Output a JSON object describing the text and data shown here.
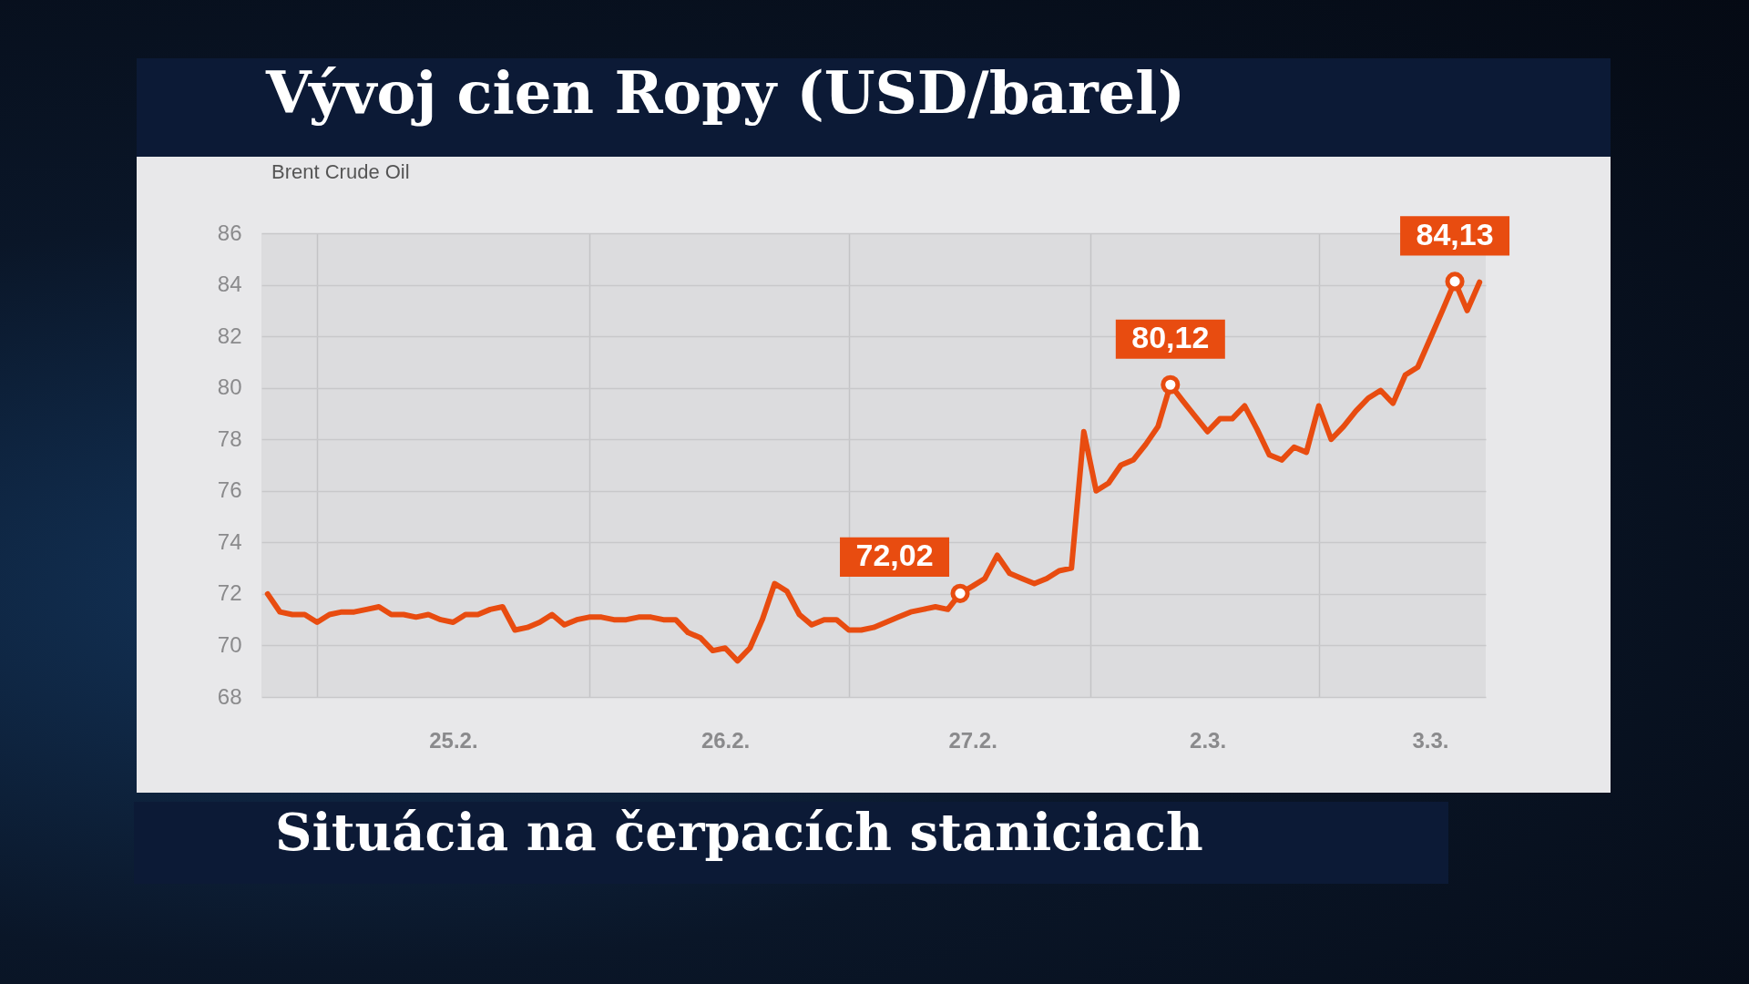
{
  "chart_data": {
    "type": "line",
    "title": "Vývoj cien Ropy (USD/barel)",
    "subtitle": "Brent Crude Oil",
    "categories": [
      null,
      null,
      null,
      null,
      null,
      null,
      null,
      null,
      null,
      null,
      null,
      null,
      null,
      null,
      null,
      "25.2.",
      null,
      null,
      null,
      null,
      null,
      null,
      null,
      null,
      null,
      null,
      null,
      null,
      null,
      null,
      null,
      null,
      null,
      null,
      null,
      null,
      null,
      "26.2.",
      null,
      null,
      null,
      null,
      null,
      null,
      null,
      null,
      null,
      null,
      null,
      null,
      null,
      null,
      null,
      null,
      null,
      null,
      null,
      "27.2.",
      null,
      null,
      null,
      null,
      null,
      null,
      null,
      null,
      null,
      null,
      null,
      null,
      null,
      null,
      null,
      null,
      null,
      null,
      "2.3.",
      null,
      null,
      null,
      null,
      null,
      null,
      null,
      null,
      null,
      null,
      null,
      null,
      null,
      null,
      null,
      null,
      null,
      "3.3.",
      null,
      null,
      null,
      null
    ],
    "ylim": [
      68,
      86
    ],
    "yticks": [
      68,
      70,
      72,
      74,
      76,
      78,
      80,
      82,
      84,
      86
    ],
    "grid": true,
    "series": [
      {
        "color": "#e84c10",
        "value_labels": [
          null,
          null,
          null,
          null,
          null,
          null,
          null,
          null,
          null,
          null,
          null,
          null,
          null,
          null,
          null,
          null,
          null,
          null,
          null,
          null,
          null,
          null,
          null,
          null,
          null,
          null,
          null,
          null,
          null,
          null,
          null,
          null,
          null,
          null,
          null,
          null,
          null,
          null,
          null,
          null,
          null,
          null,
          null,
          null,
          null,
          null,
          null,
          null,
          null,
          null,
          null,
          null,
          null,
          null,
          null,
          null,
          "72,02",
          null,
          null,
          null,
          null,
          null,
          null,
          null,
          null,
          null,
          null,
          null,
          null,
          null,
          null,
          null,
          null,
          "80,12",
          null,
          null,
          null,
          null,
          null,
          null,
          null,
          null,
          null,
          null,
          null,
          null,
          null,
          null,
          null,
          null,
          null,
          null,
          null,
          null,
          null,
          null,
          "84,13",
          null,
          null
        ],
        "values": [
          72.0,
          71.3,
          71.2,
          71.2,
          70.9,
          71.2,
          71.3,
          71.3,
          71.4,
          71.5,
          71.2,
          71.2,
          71.1,
          71.2,
          71.0,
          70.9,
          71.2,
          71.2,
          71.4,
          71.5,
          70.6,
          70.7,
          70.9,
          71.2,
          70.8,
          71.0,
          71.1,
          71.1,
          71.0,
          71.0,
          71.1,
          71.1,
          71.0,
          71.0,
          70.5,
          70.3,
          69.8,
          69.9,
          69.4,
          69.9,
          71.0,
          72.4,
          72.1,
          71.2,
          70.8,
          71.0,
          71.0,
          70.6,
          70.6,
          70.7,
          70.9,
          71.1,
          71.3,
          71.4,
          71.5,
          71.4,
          72.02,
          72.3,
          72.6,
          73.5,
          72.8,
          72.6,
          72.4,
          72.6,
          72.9,
          73.0,
          78.3,
          76.0,
          76.3,
          77.0,
          77.2,
          77.8,
          78.5,
          80.12,
          79.5,
          78.9,
          78.3,
          78.8,
          78.8,
          79.3,
          78.4,
          77.4,
          77.2,
          77.7,
          77.5,
          79.3,
          78.0,
          78.5,
          79.1,
          79.6,
          79.9,
          79.4,
          80.5,
          80.8,
          81.9,
          83.0,
          84.13,
          83.0,
          84.1
        ]
      }
    ],
    "annotations": [
      "Situácia na čerpacích staniciach"
    ]
  }
}
